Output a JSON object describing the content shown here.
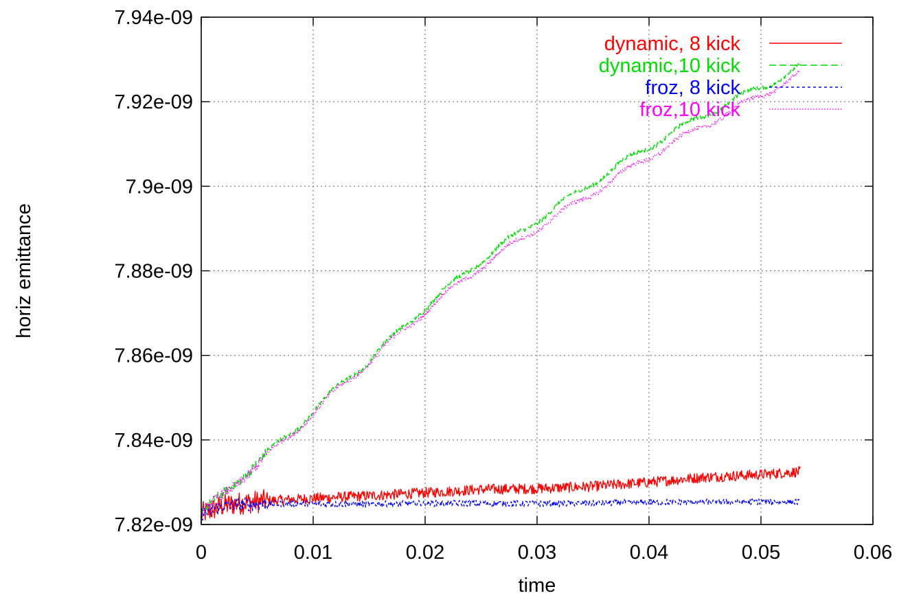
{
  "chart_data": {
    "type": "line",
    "title": "",
    "xlabel": "time",
    "ylabel": "horiz emittance",
    "xlim": [
      0,
      0.06
    ],
    "ylim": [
      7.82e-09,
      7.94e-09
    ],
    "grid": true,
    "legend_position": "top-right",
    "x_ticks": [
      0,
      0.01,
      0.02,
      0.03,
      0.04,
      0.05,
      0.06
    ],
    "x_tick_labels": [
      "0",
      "0.01",
      "0.02",
      "0.03",
      "0.04",
      "0.05",
      "0.06"
    ],
    "y_ticks": [
      7.82e-09,
      7.84e-09,
      7.86e-09,
      7.88e-09,
      7.9e-09,
      7.92e-09,
      7.94e-09
    ],
    "y_tick_labels": [
      "7.82e-09",
      "7.84e-09",
      "7.86e-09",
      "7.88e-09",
      "7.9e-09",
      "7.92e-09",
      "7.94e-09"
    ],
    "series": [
      {
        "name": "dynamic, 8 kick",
        "color": "#ff0000",
        "dash": "solid",
        "noise": 2.5e-12,
        "x": [
          0,
          0.002,
          0.004,
          0.006,
          0.01,
          0.015,
          0.02,
          0.025,
          0.03,
          0.035,
          0.04,
          0.045,
          0.05,
          0.0535
        ],
        "y": [
          7.8225e-09,
          7.8245e-09,
          7.8252e-09,
          7.8256e-09,
          7.8262e-09,
          7.8268e-09,
          7.8275e-09,
          7.8283e-09,
          7.8285e-09,
          7.829e-09,
          7.83e-09,
          7.8312e-09,
          7.8318e-09,
          7.8325e-09
        ]
      },
      {
        "name": "dynamic,10 kick",
        "color": "#00dd00",
        "dash": "long-dash",
        "noise": 1e-12,
        "x": [
          0,
          0.002,
          0.004,
          0.006,
          0.008,
          0.01,
          0.015,
          0.02,
          0.025,
          0.03,
          0.035,
          0.04,
          0.045,
          0.05,
          0.0535
        ],
        "y": [
          7.8225e-09,
          7.827e-09,
          7.8325e-09,
          7.837e-09,
          7.8415e-09,
          7.847e-09,
          7.859e-09,
          7.8715e-09,
          7.8825e-09,
          7.892e-09,
          7.901e-09,
          7.9095e-09,
          7.917e-09,
          7.9235e-09,
          7.928e-09
        ]
      },
      {
        "name": "froz, 8 kick",
        "color": "#0000ff",
        "dash": "short-dash",
        "noise": 1.5e-12,
        "x": [
          0,
          0.002,
          0.004,
          0.006,
          0.01,
          0.015,
          0.02,
          0.025,
          0.03,
          0.035,
          0.04,
          0.045,
          0.05,
          0.0535
        ],
        "y": [
          7.8225e-09,
          7.8245e-09,
          7.8248e-09,
          7.8249e-09,
          7.8249e-09,
          7.8248e-09,
          7.825e-09,
          7.825e-09,
          7.8249e-09,
          7.825e-09,
          7.8253e-09,
          7.8253e-09,
          7.8254e-09,
          7.8253e-09
        ]
      },
      {
        "name": "froz,10 kick",
        "color": "#ff00ff",
        "dash": "dotted",
        "noise": 1e-12,
        "x": [
          0,
          0.002,
          0.004,
          0.006,
          0.008,
          0.01,
          0.015,
          0.02,
          0.025,
          0.03,
          0.035,
          0.04,
          0.045,
          0.05,
          0.0535
        ],
        "y": [
          7.8225e-09,
          7.8268e-09,
          7.832e-09,
          7.8365e-09,
          7.841e-09,
          7.8465e-09,
          7.8585e-09,
          7.8705e-09,
          7.881e-09,
          7.89e-09,
          7.8985e-09,
          7.907e-09,
          7.9145e-09,
          7.9215e-09,
          7.9265e-09
        ]
      }
    ]
  }
}
